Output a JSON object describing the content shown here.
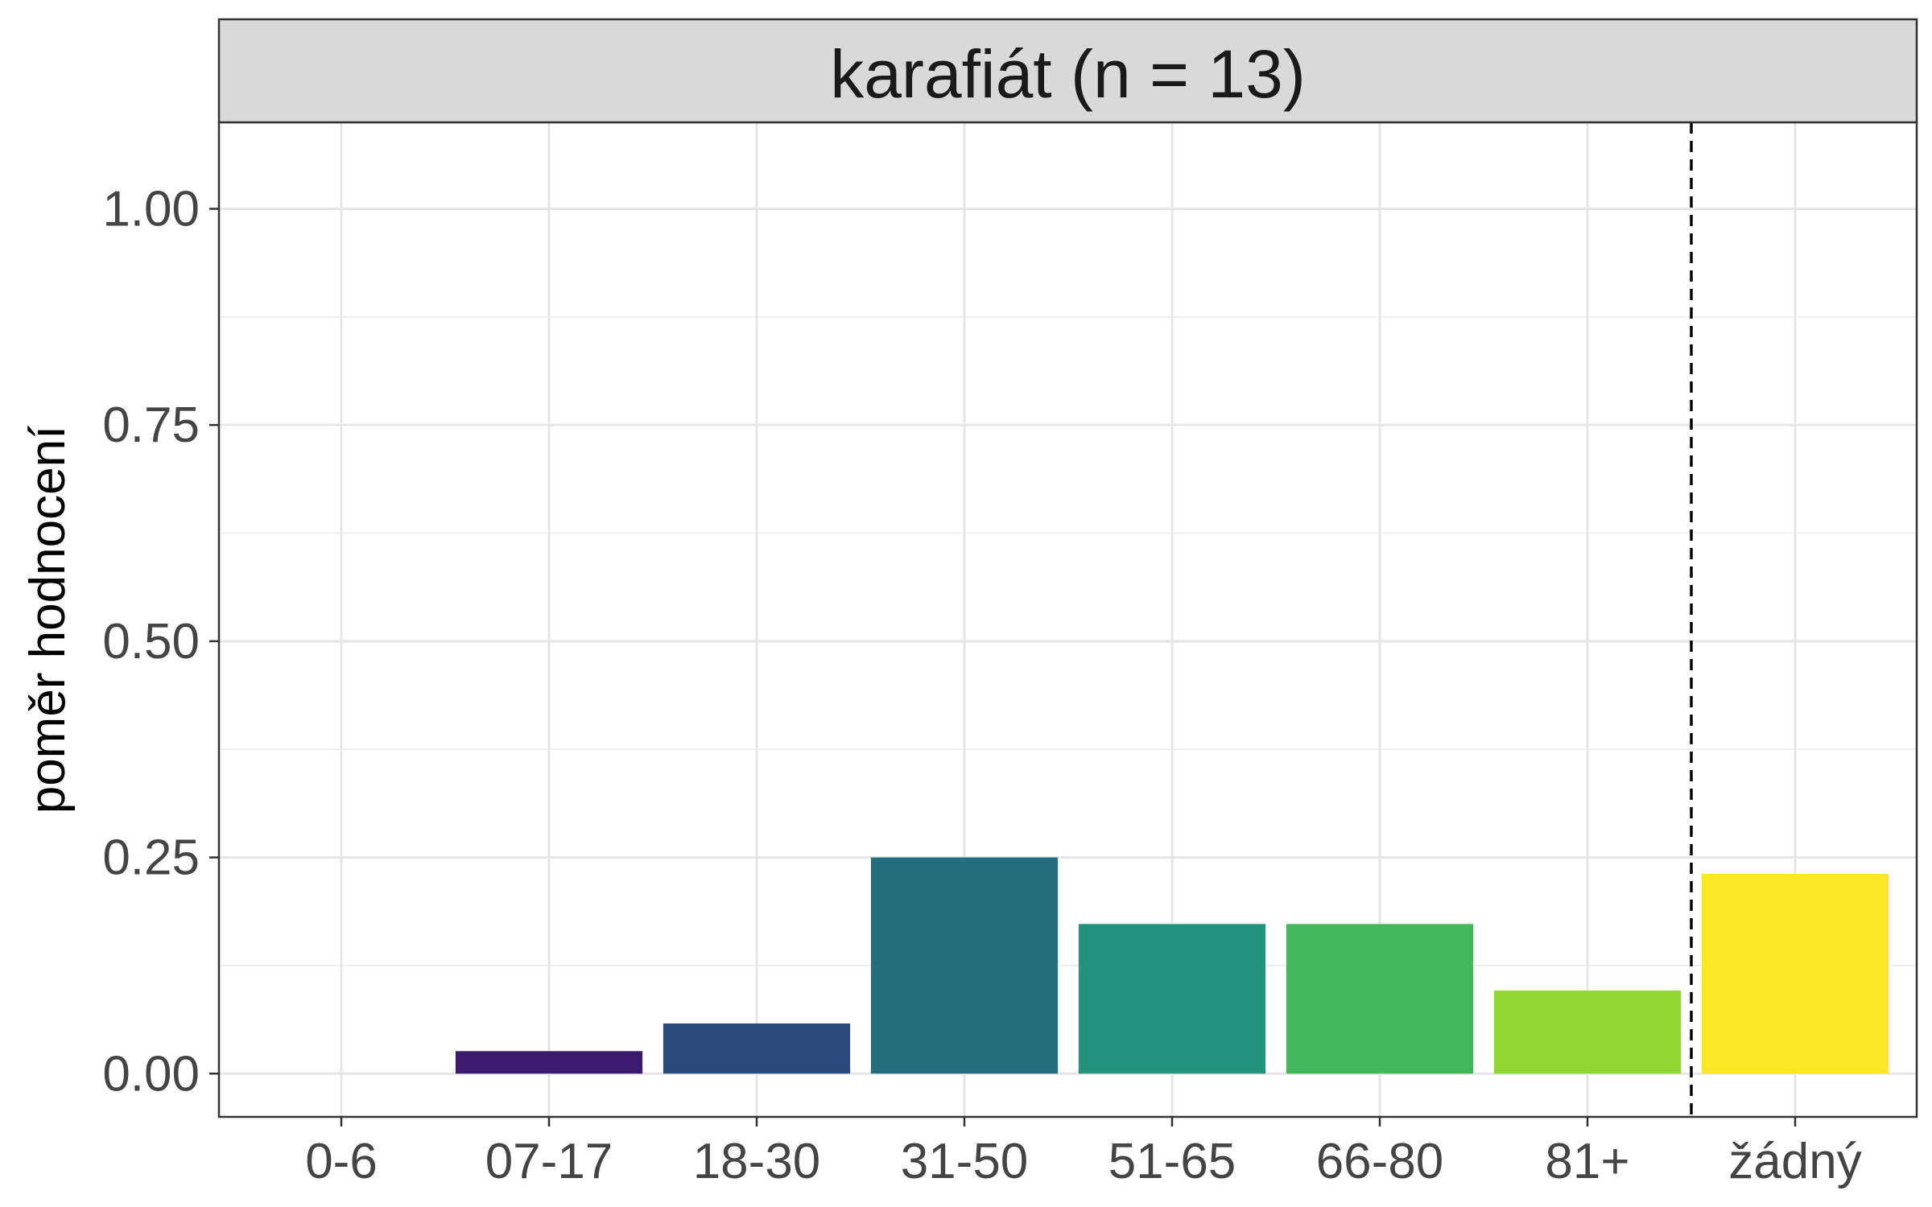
{
  "chart_data": {
    "type": "bar",
    "title": "karafiát (n = 13)",
    "xlabel": "",
    "ylabel": "poměr hodnocení",
    "categories": [
      "0-6",
      "07-17",
      "18-30",
      "31-50",
      "51-65",
      "66-80",
      "81+",
      "žádný"
    ],
    "values": [
      0.0,
      0.026,
      0.058,
      0.25,
      0.173,
      0.173,
      0.096,
      0.231
    ],
    "colors": [
      "#440154",
      "#3b1a6e",
      "#2a4a7c",
      "#226e7c",
      "#22937a",
      "#43b85a",
      "#90d530",
      "#fde625"
    ],
    "ylim": [
      -0.05,
      1.1
    ],
    "yticks": [
      0.0,
      0.25,
      0.5,
      0.75,
      1.0
    ],
    "ytick_labels": [
      "0.00",
      "0.25",
      "0.50",
      "0.75",
      "1.00"
    ],
    "grid": true,
    "separator_after_category": "81+",
    "separator_style": "dashed"
  }
}
